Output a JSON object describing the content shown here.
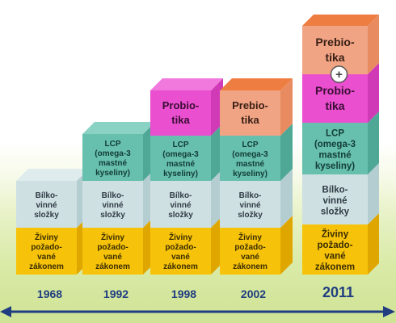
{
  "colors": {
    "yellow": "#f7c30a",
    "lightblue": "#cfe0e2",
    "teal": "#67bfae",
    "magenta": "#e94fcf",
    "orange": "#f0a484",
    "orange_top": "#ee7d42",
    "axis": "#1f3d80",
    "year": "#1f3d80"
  },
  "stacks": [
    {
      "year": "1968",
      "blocks": [
        {
          "kind": "yellow",
          "lines": [
            "Živiny",
            "požado-",
            "vané",
            "zákonem"
          ]
        },
        {
          "kind": "lightblue",
          "lines": [
            "Bílko-",
            "vinné",
            "složky"
          ]
        }
      ]
    },
    {
      "year": "1992",
      "blocks": [
        {
          "kind": "yellow",
          "lines": [
            "Živiny",
            "požado-",
            "vané",
            "zákonem"
          ]
        },
        {
          "kind": "lightblue",
          "lines": [
            "Bílko-",
            "vinné",
            "složky"
          ]
        },
        {
          "kind": "teal",
          "lines": [
            "LCP",
            "(omega-3",
            "mastné",
            "kyseliny)"
          ]
        }
      ]
    },
    {
      "year": "1998",
      "blocks": [
        {
          "kind": "yellow",
          "lines": [
            "Živiny",
            "požado-",
            "vané",
            "zákonem"
          ]
        },
        {
          "kind": "lightblue",
          "lines": [
            "Bílko-",
            "vinné",
            "složky"
          ]
        },
        {
          "kind": "teal",
          "lines": [
            "LCP",
            "(omega-3",
            "mastné",
            "kyseliny)"
          ]
        },
        {
          "kind": "magenta",
          "lines": [
            "Probio-",
            "tika"
          ]
        }
      ]
    },
    {
      "year": "2002",
      "blocks": [
        {
          "kind": "yellow",
          "lines": [
            "Živiny",
            "požado-",
            "vané",
            "zákonem"
          ]
        },
        {
          "kind": "lightblue",
          "lines": [
            "Bílko-",
            "vinné",
            "složky"
          ]
        },
        {
          "kind": "teal",
          "lines": [
            "LCP",
            "(omega-3",
            "mastné",
            "kyseliny)"
          ]
        },
        {
          "kind": "orange",
          "lines": [
            "Prebio-",
            "tika"
          ]
        }
      ]
    },
    {
      "year": "2011",
      "big": true,
      "blocks": [
        {
          "kind": "yellow",
          "lines": [
            "Živiny",
            "požado-",
            "vané",
            "zákonem"
          ]
        },
        {
          "kind": "lightblue",
          "lines": [
            "Bílko-",
            "vinné",
            "složky"
          ]
        },
        {
          "kind": "teal",
          "lines": [
            "LCP",
            "(omega-3",
            "mastné",
            "kyseliny)"
          ]
        },
        {
          "kind": "magenta",
          "lines": [
            "Probio-",
            "tika"
          ]
        },
        {
          "kind": "orange",
          "lines": [
            "Prebio-",
            "tika"
          ]
        }
      ],
      "plus_symbol": "+"
    }
  ]
}
